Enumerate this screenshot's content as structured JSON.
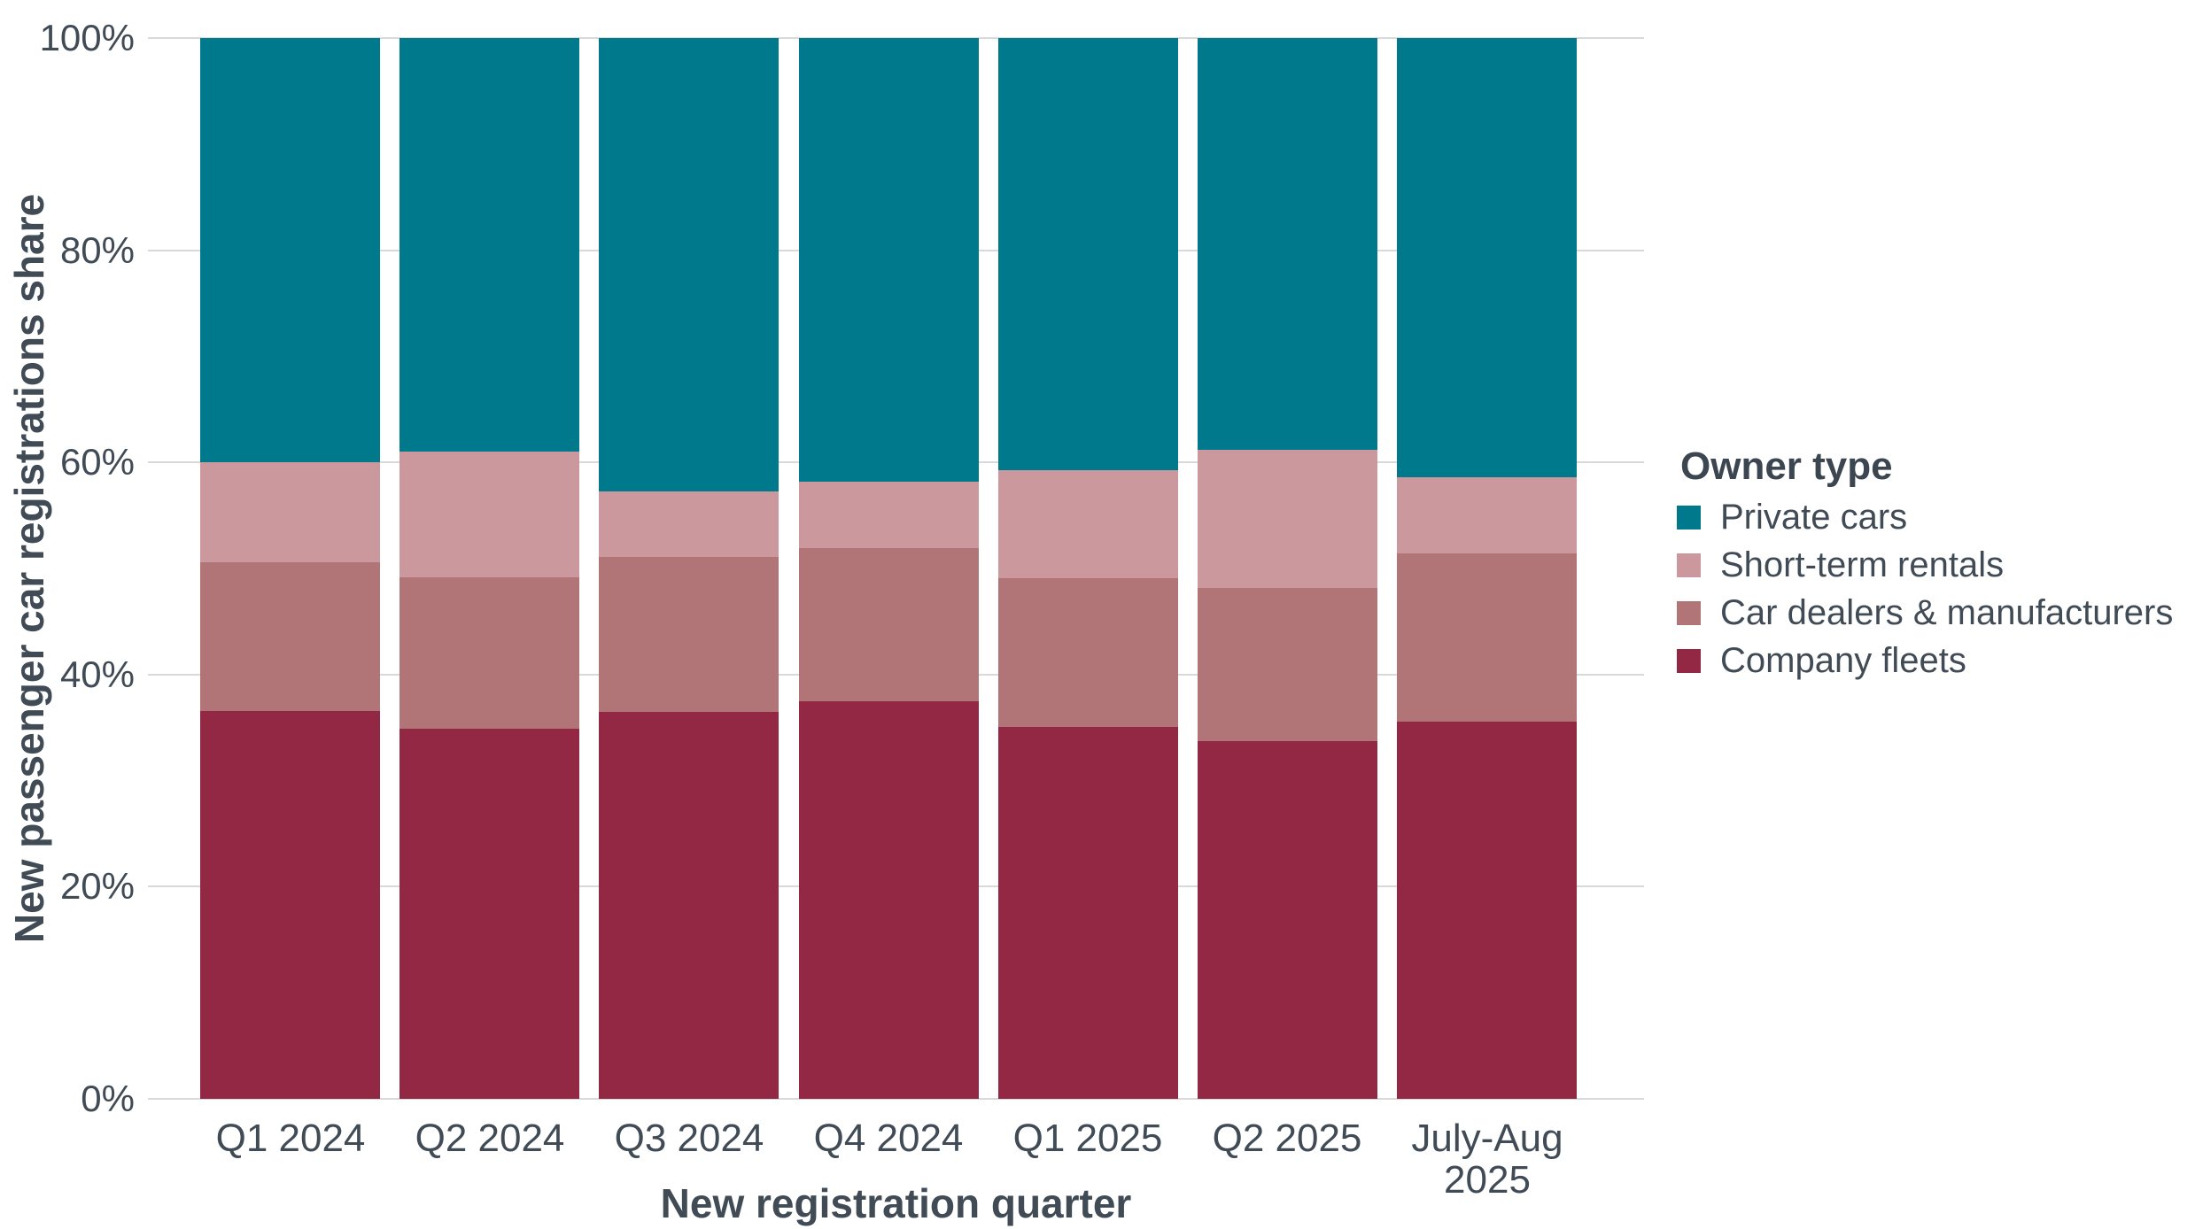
{
  "chart_data": {
    "type": "bar",
    "stacked": true,
    "percent": true,
    "title": "",
    "xlabel": "New registration quarter",
    "ylabel": "New passenger car registrations share",
    "legend_title": "Owner type",
    "legend_position": "right",
    "grid": true,
    "ylim": [
      0,
      100
    ],
    "ytick_values": [
      0,
      20,
      40,
      60,
      80,
      100
    ],
    "ytick_labels": [
      "0%",
      "20%",
      "40%",
      "60%",
      "80%",
      "100%"
    ],
    "categories": [
      "Q1 2024",
      "Q2 2024",
      "Q3 2024",
      "Q4 2024",
      "Q1 2025",
      "Q2 2025",
      "July-Aug\n2025"
    ],
    "series": [
      {
        "name": "Company fleets",
        "color": "#932845",
        "values": [
          36.6,
          34.9,
          36.5,
          37.5,
          35.1,
          33.7,
          35.6
        ]
      },
      {
        "name": "Car dealers & manufacturers",
        "color": "#b17578",
        "values": [
          14.0,
          14.3,
          14.6,
          14.4,
          14.0,
          14.5,
          15.8
        ]
      },
      {
        "name": "Short-term rentals",
        "color": "#cb999d",
        "values": [
          9.4,
          11.8,
          6.2,
          6.3,
          10.2,
          13.0,
          7.2
        ]
      },
      {
        "name": "Private cars",
        "color": "#00798c",
        "values": [
          40.0,
          39.0,
          42.7,
          41.8,
          40.7,
          38.8,
          41.4
        ]
      }
    ]
  },
  "colors": {
    "text": "#404b55",
    "gridline": "#d9d9d9",
    "background": "#ffffff"
  }
}
